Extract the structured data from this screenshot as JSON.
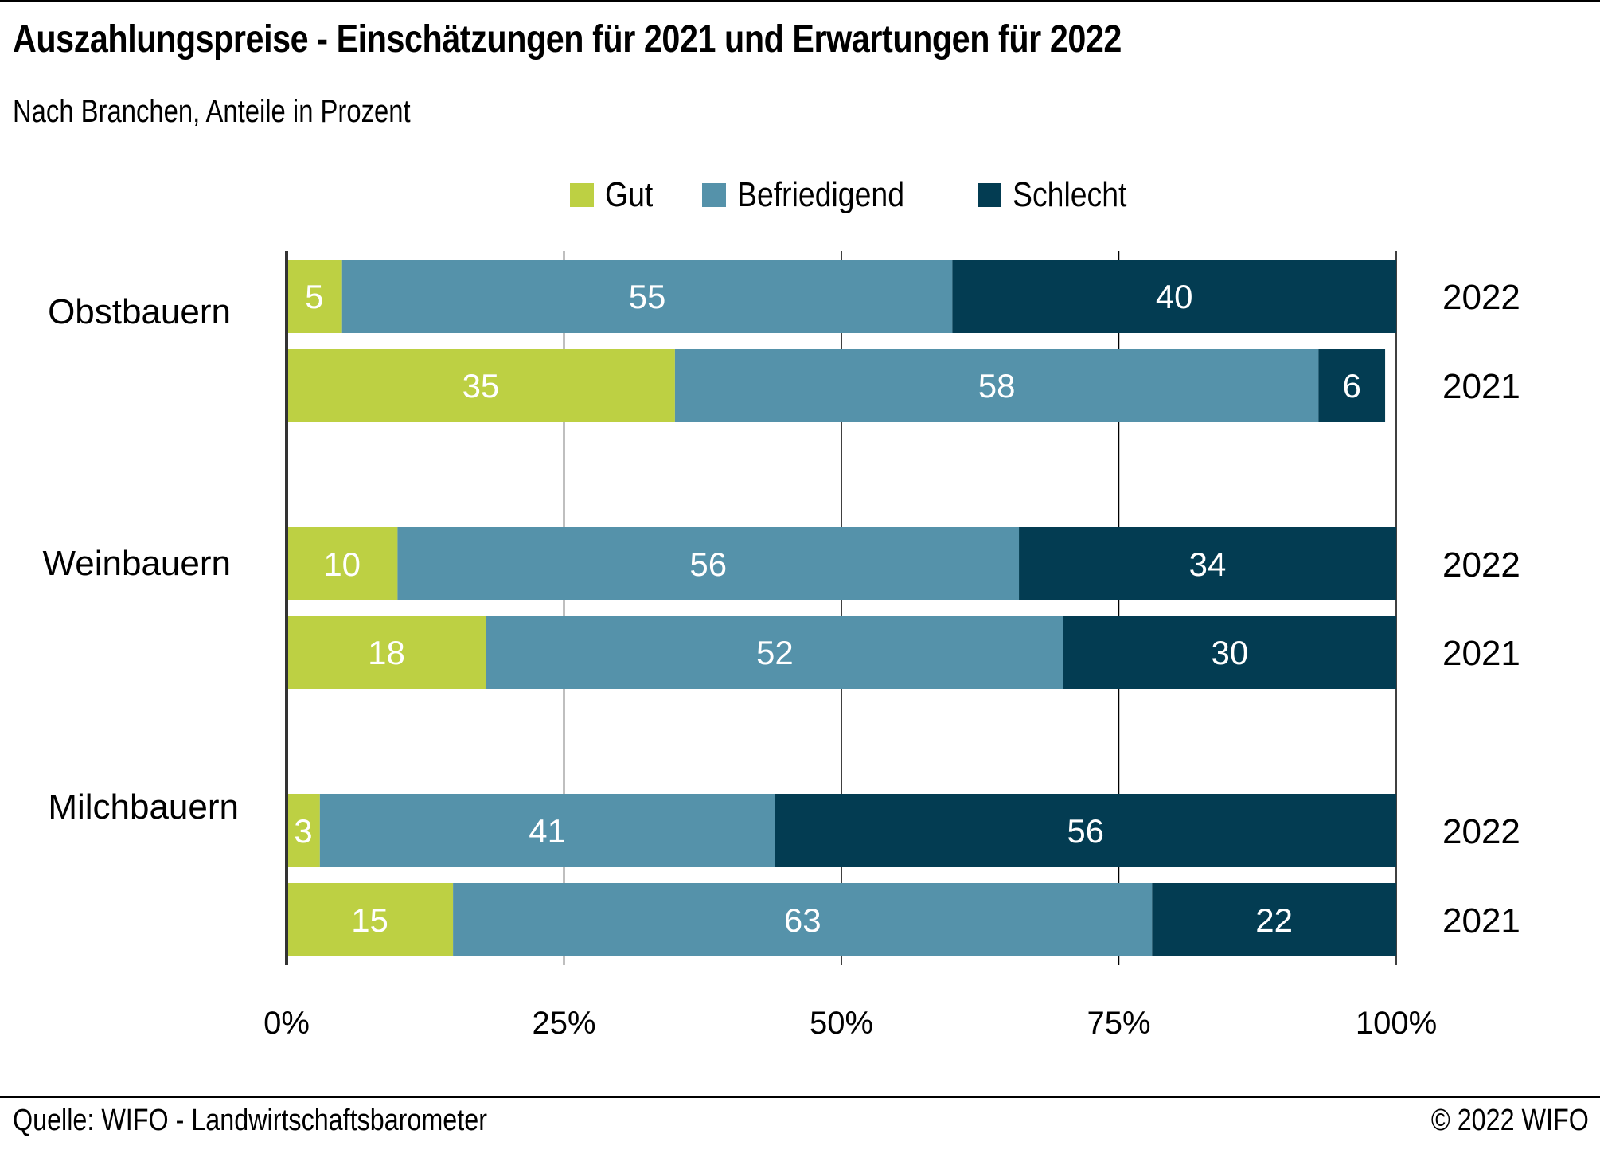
{
  "header": {
    "title": "Auszahlungspreise - Einschätzungen für 2021 und Erwartungen für 2022",
    "subtitle": "Nach Branchen, Anteile in Prozent"
  },
  "footer": {
    "source": "Quelle: WIFO - Landwirtschaftsbarometer",
    "copyright": "© 2022 WIFO"
  },
  "chart_data": {
    "type": "bar",
    "orientation": "horizontal",
    "stacked": "percent",
    "title": "Auszahlungspreise - Einschätzungen für 2021 und Erwartungen für 2022",
    "subtitle": "Nach Branchen, Anteile in Prozent",
    "xlabel": "",
    "ylabel": "",
    "xlim": [
      0,
      100
    ],
    "x_ticks": [
      "0%",
      "25%",
      "50%",
      "75%",
      "100%"
    ],
    "grid": true,
    "legend_position": "top-center",
    "legend": [
      {
        "name": "Gut",
        "color": "#bdd043"
      },
      {
        "name": "Befriedigend",
        "color": "#5592aa"
      },
      {
        "name": "Schlecht",
        "color": "#033c52"
      }
    ],
    "groups": [
      {
        "category": "Obstbauern",
        "bars": [
          {
            "year": "2022",
            "values": [
              5,
              55,
              40
            ]
          },
          {
            "year": "2021",
            "values": [
              35,
              58,
              6
            ]
          }
        ]
      },
      {
        "category": "Weinbauern",
        "bars": [
          {
            "year": "2022",
            "values": [
              10,
              56,
              34
            ]
          },
          {
            "year": "2021",
            "values": [
              18,
              52,
              30
            ]
          }
        ]
      },
      {
        "category": "Milchbauern",
        "bars": [
          {
            "year": "2022",
            "values": [
              3,
              41,
              56
            ]
          },
          {
            "year": "2021",
            "values": [
              15,
              63,
              22
            ]
          }
        ]
      }
    ]
  }
}
